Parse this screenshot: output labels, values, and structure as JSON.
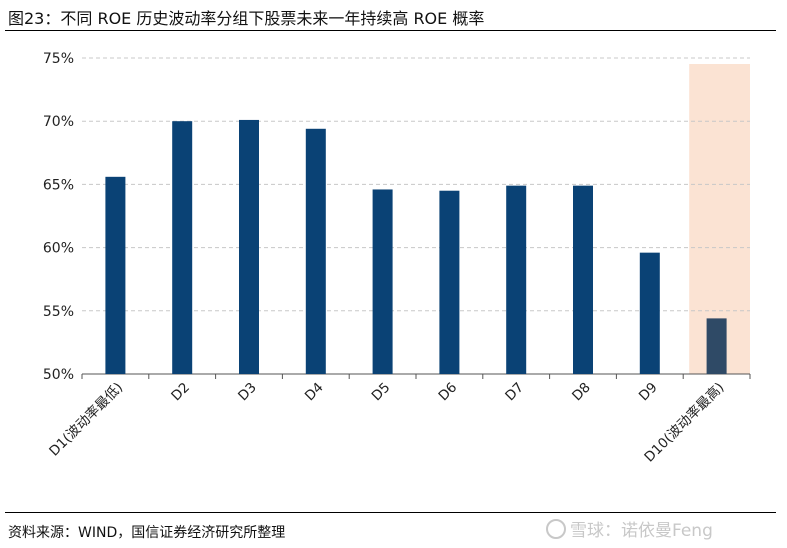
{
  "title": "图23：不同 ROE 历史波动率分组下股票未来一年持续高 ROE 概率",
  "source": "资料来源：WIND，国信证券经济研究所整理",
  "watermark": "雪球：诺依曼Feng",
  "colors": {
    "bar": "#0a4275",
    "bar_highlight": "#2f4a66",
    "highlight_band": "#fbe3d3",
    "grid": "#c8c8c8"
  },
  "chart_data": {
    "type": "bar",
    "categories": [
      "D1(波动率最低)",
      "D2",
      "D3",
      "D4",
      "D5",
      "D6",
      "D7",
      "D8",
      "D9",
      "D10(波动率最高)"
    ],
    "values": [
      65.6,
      70.0,
      70.1,
      69.4,
      64.6,
      64.5,
      64.9,
      64.9,
      59.6,
      54.4
    ],
    "yticks": [
      "50%",
      "55%",
      "60%",
      "65%",
      "70%",
      "75%"
    ],
    "ylim": [
      50,
      75
    ],
    "y_unit": "%",
    "highlighted_category": "D10(波动率最高)",
    "grid": true
  }
}
